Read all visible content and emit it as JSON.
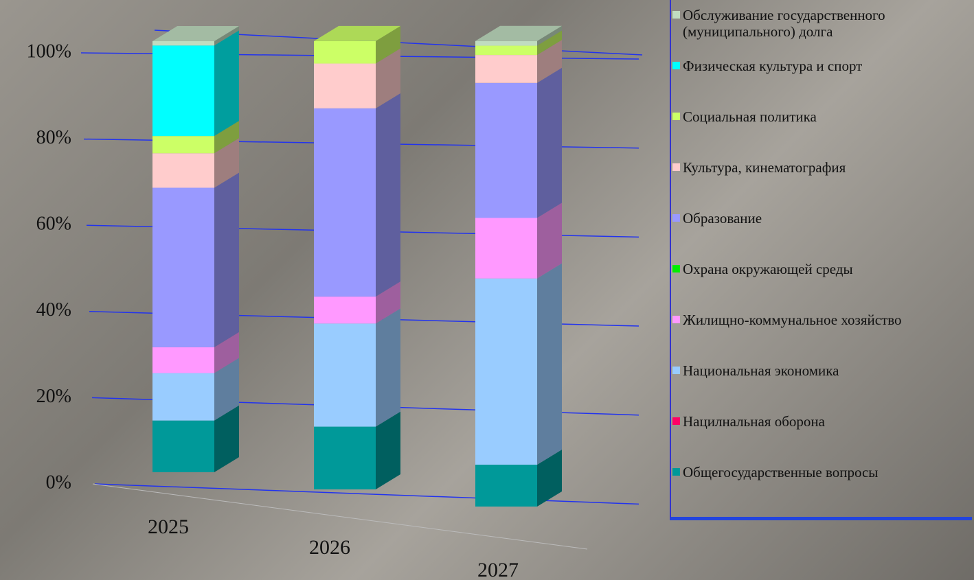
{
  "chart_data": {
    "type": "stacked-bar-3d",
    "categories": [
      "2025",
      "2026",
      "2027"
    ],
    "series": [
      {
        "name": "Общегосударственные вопросы",
        "color": "#009999",
        "values": [
          12,
          14,
          9
        ]
      },
      {
        "name": "Нацилнальная оборона",
        "color": "#ff0066",
        "values": [
          0,
          0,
          0
        ]
      },
      {
        "name": "Национальная экономика",
        "color": "#99ccff",
        "values": [
          11,
          23,
          40
        ]
      },
      {
        "name": "Жилищно-коммунальное хозяйство",
        "color": "#ff99ff",
        "values": [
          6,
          6,
          13
        ]
      },
      {
        "name": "Охрана окружающей среды",
        "color": "#00ee00",
        "values": [
          0,
          0,
          0
        ]
      },
      {
        "name": "Образование",
        "color": "#9999ff",
        "values": [
          37,
          42,
          29
        ]
      },
      {
        "name": "Культура, кинематография",
        "color": "#ffcccc",
        "values": [
          8,
          10,
          6
        ]
      },
      {
        "name": "Социальная политика",
        "color": "#ccff66",
        "values": [
          4,
          5,
          2
        ]
      },
      {
        "name": "Физическая культура и спорт",
        "color": "#00ffff",
        "values": [
          21,
          0,
          0
        ]
      },
      {
        "name": "Обслуживание государственного (муниципального) долга",
        "color": "#c0dcc0",
        "values": [
          1,
          0,
          1
        ]
      }
    ],
    "ylim": [
      0,
      100
    ],
    "yticks": [
      {
        "value": 0,
        "label": "0%"
      },
      {
        "value": 20,
        "label": "20%"
      },
      {
        "value": 40,
        "label": "40%"
      },
      {
        "value": 60,
        "label": "60%"
      },
      {
        "value": 80,
        "label": "80%"
      },
      {
        "value": 100,
        "label": "100%"
      }
    ],
    "grid": true,
    "legend": "right"
  }
}
